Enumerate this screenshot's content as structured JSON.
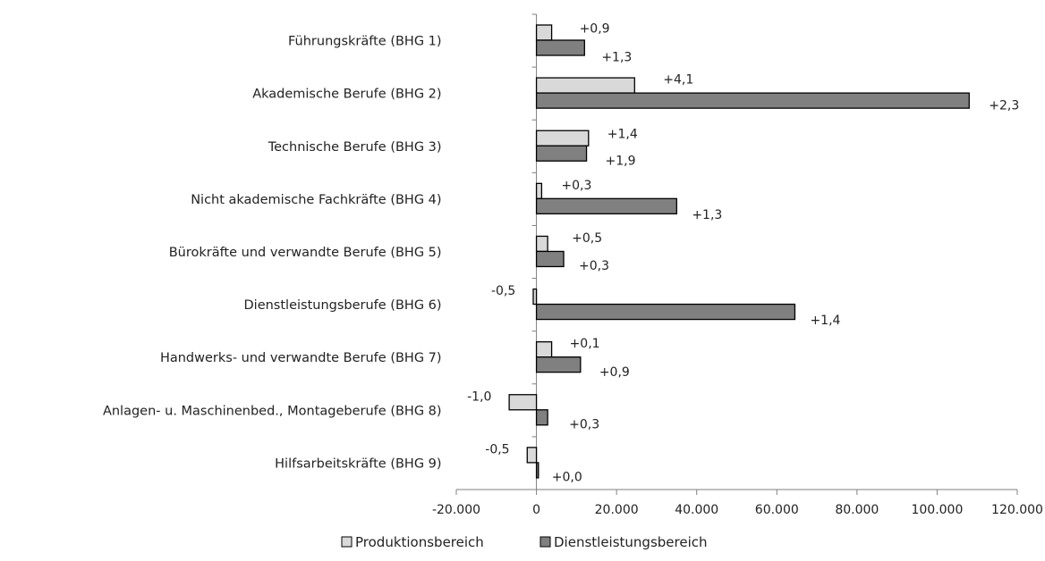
{
  "chart_data": {
    "type": "bar",
    "orientation": "horizontal",
    "categories": [
      "Führungskräfte (BHG 1)",
      "Akademische Berufe (BHG 2)",
      "Technische Berufe (BHG 3)",
      "Nicht akademische Fachkräfte (BHG 4)",
      "Bürokräfte und verwandte Berufe (BHG 5)",
      "Dienstleistungsberufe (BHG 6)",
      "Handwerks- und verwandte Berufe (BHG 7)",
      "Anlagen- u. Maschinenbed., Montageberufe (BHG 8)",
      "Hilfsarbeitskräfte (BHG 9)"
    ],
    "series": [
      {
        "name": "Produktionsbereich",
        "color": "#d9d9d9",
        "values": [
          3800,
          24500,
          13000,
          1300,
          2800,
          -800,
          3800,
          -6800,
          -2300
        ],
        "labels": [
          "+0,9",
          "+4,1",
          "+1,4",
          "+0,3",
          "+0,5",
          "-0,5",
          "+0,1",
          "-1,0",
          "-0,5"
        ]
      },
      {
        "name": "Dienstleistungsbereich",
        "color": "#808080",
        "values": [
          12000,
          108000,
          12500,
          35000,
          6800,
          64500,
          11000,
          2800,
          500
        ],
        "labels": [
          "+1,3",
          "+2,3",
          "+1,9",
          "+1,3",
          "+0,3",
          "+1,4",
          "+0,9",
          "+0,3",
          "+0,0"
        ]
      }
    ],
    "xlim": [
      -20000,
      120000
    ],
    "xticks": [
      -20000,
      0,
      20000,
      40000,
      60000,
      80000,
      100000,
      120000
    ],
    "xtick_labels": [
      "-20.000",
      "0",
      "20.000",
      "40.000",
      "60.000",
      "80.000",
      "100.000",
      "120.000"
    ],
    "title": "",
    "xlabel": "",
    "ylabel": "",
    "grid": false,
    "legend_position": "bottom"
  }
}
